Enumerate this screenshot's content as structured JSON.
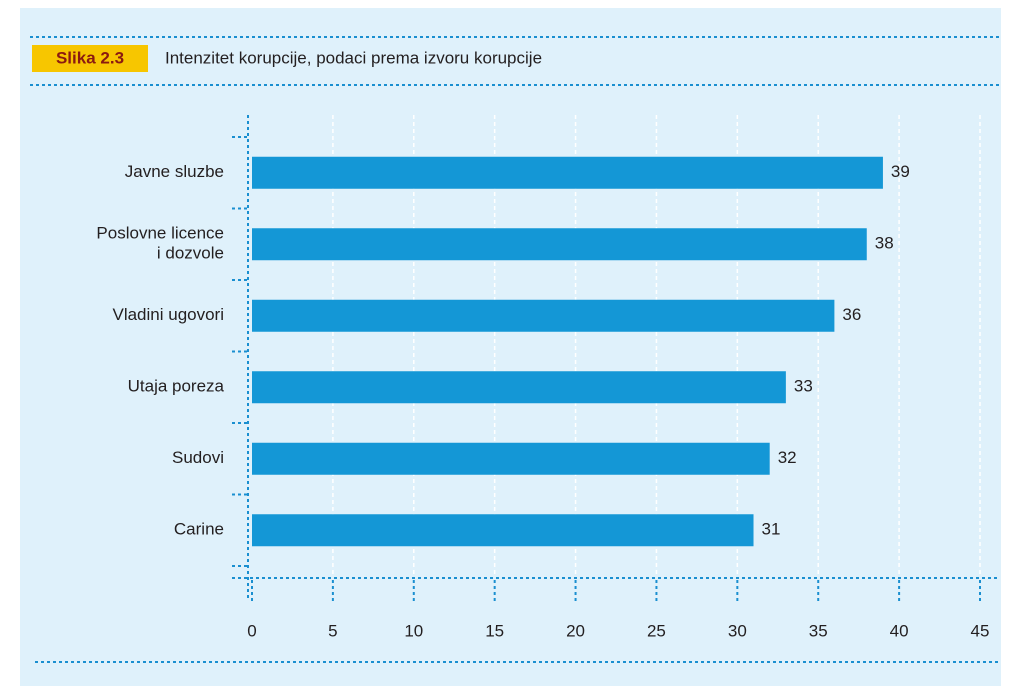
{
  "chart_data": {
    "type": "hbar",
    "figure_label": "Slika 2.3",
    "title": "Intenzitet korupcije, podaci prema izvoru korupcije",
    "categories": [
      "Javne sluzbe",
      "Poslovne licence\ni dozvole",
      "Vladini ugovori",
      "Utaja poreza",
      "Sudovi",
      "Carine"
    ],
    "values": [
      39,
      38,
      36,
      33,
      32,
      31
    ],
    "color": "#1497d6",
    "xlim": [
      0,
      45
    ],
    "xticks": [
      0,
      5,
      10,
      15,
      20,
      25,
      30,
      35,
      40,
      45
    ],
    "grid": true
  }
}
